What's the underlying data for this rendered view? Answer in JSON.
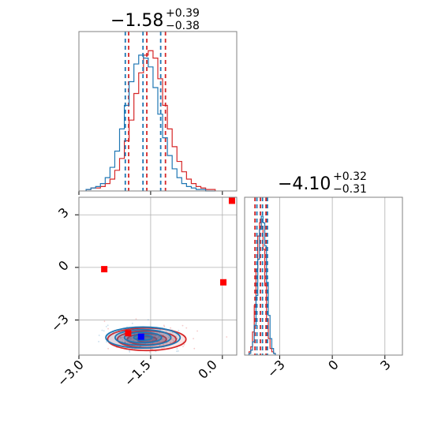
{
  "colors": {
    "red": "#d62728",
    "blue": "#1f77b4",
    "marker_red": "#ff0000",
    "marker_blue": "#0000ff",
    "grid": "#b0b0b0",
    "axes": "#808080"
  },
  "chart_data": [
    {
      "type": "histogram",
      "panel": "marginal-param1",
      "title": {
        "main": "−1.58",
        "sup": "+0.39",
        "sub": "−0.38"
      },
      "xlim": [
        -3.0,
        0.3
      ],
      "grid": true,
      "series": [
        {
          "color": "red",
          "x": [
            -2.8,
            -2.7,
            -2.6,
            -2.5,
            -2.4,
            -2.3,
            -2.2,
            -2.1,
            -2.0,
            -1.9,
            -1.8,
            -1.7,
            -1.6,
            -1.5,
            -1.4,
            -1.3,
            -1.2,
            -1.1,
            -1.0,
            -0.9,
            -0.8,
            -0.7,
            -0.6,
            -0.5,
            -0.4,
            -0.3,
            -0.2
          ],
          "values": [
            1,
            2,
            2,
            3,
            5,
            8,
            14,
            22,
            34,
            48,
            66,
            80,
            92,
            95,
            90,
            76,
            58,
            42,
            30,
            20,
            13,
            8,
            5,
            3,
            2,
            1,
            1
          ],
          "quantiles": [
            -1.96,
            -1.58,
            -1.19
          ]
        },
        {
          "color": "blue",
          "x": [
            -2.8,
            -2.7,
            -2.6,
            -2.5,
            -2.4,
            -2.3,
            -2.2,
            -2.1,
            -2.0,
            -1.9,
            -1.8,
            -1.7,
            -1.6,
            -1.5,
            -1.4,
            -1.3,
            -1.2,
            -1.1,
            -1.0,
            -0.9,
            -0.8,
            -0.7,
            -0.6,
            -0.5,
            -0.4,
            -0.3,
            -0.2
          ],
          "values": [
            1,
            2,
            3,
            5,
            9,
            16,
            27,
            42,
            58,
            74,
            86,
            92,
            90,
            84,
            70,
            52,
            36,
            24,
            15,
            9,
            5,
            3,
            2,
            1,
            1,
            0,
            0
          ],
          "quantiles": [
            -2.03,
            -1.66,
            -1.29
          ]
        }
      ]
    },
    {
      "type": "histogram",
      "panel": "marginal-param2",
      "title": {
        "main": "−4.10",
        "sup": "+0.32",
        "sub": "−0.31"
      },
      "xlim": [
        -5.0,
        4.0
      ],
      "xticks": [
        "−3",
        "0",
        "3"
      ],
      "xtick_values": [
        -3,
        0,
        3
      ],
      "grid": true,
      "series": [
        {
          "color": "red",
          "x": [
            -4.7,
            -4.6,
            -4.5,
            -4.4,
            -4.3,
            -4.2,
            -4.1,
            -4.0,
            -3.9,
            -3.8,
            -3.7,
            -3.6,
            -3.5,
            -3.4,
            -3.3
          ],
          "values": [
            2,
            5,
            14,
            30,
            52,
            72,
            80,
            78,
            64,
            42,
            22,
            10,
            4,
            2,
            1
          ],
          "quantiles": [
            -4.41,
            -4.1,
            -3.78
          ]
        },
        {
          "color": "blue",
          "x": [
            -4.7,
            -4.6,
            -4.5,
            -4.4,
            -4.3,
            -4.2,
            -4.1,
            -4.0,
            -3.9,
            -3.8,
            -3.7,
            -3.6,
            -3.5,
            -3.4,
            -3.3
          ],
          "values": [
            1,
            3,
            8,
            18,
            36,
            58,
            76,
            84,
            80,
            66,
            44,
            24,
            10,
            4,
            1
          ],
          "quantiles": [
            -4.3,
            -3.98,
            -3.7
          ]
        }
      ]
    },
    {
      "type": "scatter",
      "panel": "joint",
      "xlim": [
        -3.0,
        0.3
      ],
      "ylim": [
        -5.0,
        4.0
      ],
      "xticks": [
        "−3.0",
        "−1.5",
        "0.0"
      ],
      "xtick_values": [
        -3.0,
        -1.5,
        0.0
      ],
      "yticks": [
        "3",
        "0",
        "−3"
      ],
      "ytick_values": [
        3,
        0,
        -3
      ],
      "grid": true,
      "contours": [
        {
          "color": "red",
          "center": [
            -1.58,
            -4.1
          ],
          "spread": [
            0.39,
            0.32
          ]
        },
        {
          "color": "blue",
          "center": [
            -1.66,
            -4.0
          ],
          "spread": [
            0.37,
            0.3
          ]
        }
      ],
      "markers": [
        {
          "color": "marker_red",
          "x": -2.47,
          "y": -0.1
        },
        {
          "color": "marker_red",
          "x": 0.02,
          "y": -0.85
        },
        {
          "color": "marker_red",
          "x": 0.2,
          "y": 3.8
        },
        {
          "color": "marker_red",
          "x": -1.97,
          "y": -3.75
        },
        {
          "color": "marker_blue",
          "x": -1.7,
          "y": -3.95
        }
      ]
    }
  ]
}
